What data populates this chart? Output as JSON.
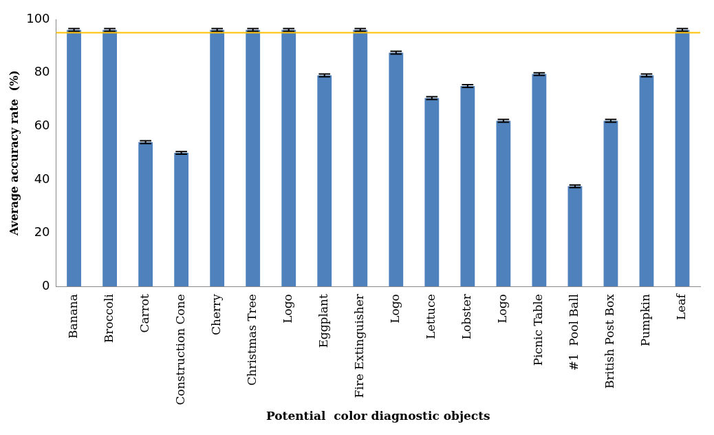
{
  "chart_data": {
    "type": "bar",
    "xlabel": "Potential  color diagnostic objects",
    "ylabel": "Average accuracy rate  (%)",
    "categories": [
      "Banana",
      "Broccoli",
      "Carrot",
      "Construction Cone",
      "Cherry",
      "Christmas Tree",
      "Logo",
      "Eggplant",
      "Fire Extinguisher",
      "Logo",
      "Lettuce",
      "Lobster",
      "Logo",
      "Picnic Table",
      "#1  Pool Ball",
      "British Post Box",
      "Pumpkin",
      "Leaf"
    ],
    "values": [
      96,
      96,
      54,
      50,
      96,
      96,
      96,
      79,
      96,
      87.5,
      70.5,
      75,
      62,
      79.5,
      37.5,
      62,
      79,
      96
    ],
    "errors": [
      0.5,
      0.5,
      0.5,
      0.5,
      0.5,
      0.5,
      0.5,
      0.5,
      0.5,
      0.5,
      0.5,
      0.5,
      0.5,
      0.5,
      0.5,
      0.5,
      0.5,
      0.5
    ],
    "color": "#4f81bd",
    "ylim": [
      0,
      100
    ],
    "yticks": [
      0,
      20,
      40,
      60,
      80,
      100
    ],
    "grid": false,
    "legend": false,
    "ref_lines": [
      {
        "axis": "y",
        "value": 95,
        "color": "#ffc000"
      }
    ]
  }
}
